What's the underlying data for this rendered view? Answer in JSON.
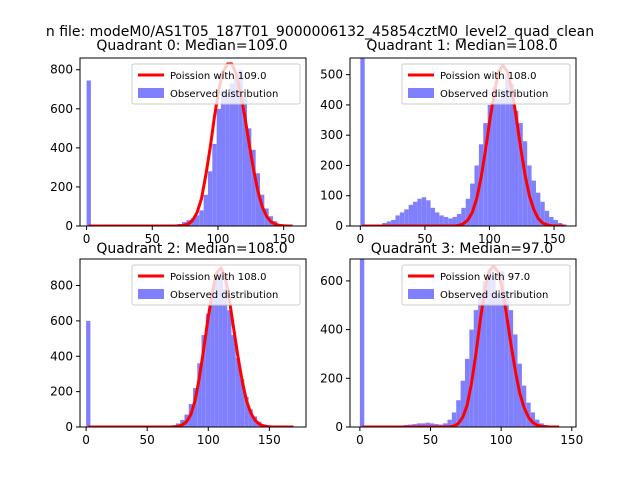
{
  "figure": {
    "suptitle": "n file: modeM0/AS1T05_187T01_9000006132_45854cztM0_level2_quad_clean"
  },
  "legend": {
    "observed_label": "Observed distribution"
  },
  "colors": {
    "histogram": "#8080ff",
    "poisson_line": "#ff0000",
    "axis": "#000000"
  },
  "chart_data": [
    {
      "type": "bar",
      "title": "Quadrant 0: Median=109.0",
      "poisson_label": "Poission with 109.0",
      "median": 109.0,
      "xlim": [
        -5,
        167
      ],
      "ylim": [
        0,
        860
      ],
      "xticks": [
        "0",
        "50",
        "100",
        "150"
      ],
      "yticks": [
        "0",
        "200",
        "400",
        "600",
        "800"
      ],
      "legend_position": "top-right",
      "bin_width": 3.3,
      "x": [
        0,
        3.3,
        6.6,
        9.9,
        13.2,
        16.5,
        19.8,
        23.1,
        26.4,
        29.7,
        33.0,
        36.3,
        39.6,
        42.9,
        46.2,
        49.5,
        52.8,
        56.1,
        59.4,
        62.7,
        66.0,
        69.3,
        72.6,
        75.9,
        79.2,
        82.5,
        85.8,
        89.1,
        92.4,
        95.7,
        99.0,
        102.3,
        105.6,
        108.9,
        112.2,
        115.5,
        118.8,
        122.1,
        125.4,
        128.7,
        132.0,
        135.3,
        138.6,
        141.9,
        145.2,
        148.5,
        151.8,
        155.1
      ],
      "values": [
        745,
        0,
        0,
        0,
        0,
        0,
        0,
        0,
        0,
        0,
        0,
        0,
        0,
        0,
        0,
        0,
        0,
        0,
        0,
        0,
        5,
        10,
        20,
        30,
        40,
        55,
        80,
        160,
        280,
        420,
        600,
        690,
        680,
        730,
        760,
        800,
        660,
        500,
        390,
        270,
        160,
        90,
        50,
        25,
        10,
        5,
        2,
        0
      ],
      "poisson_values": [
        0,
        0,
        0,
        0,
        0,
        0,
        0,
        0,
        0,
        0,
        0,
        0,
        0,
        0,
        0,
        0,
        0,
        0,
        0,
        0,
        0,
        1,
        4,
        10,
        30,
        70,
        140,
        260,
        400,
        560,
        700,
        790,
        830,
        830,
        780,
        680,
        560,
        420,
        290,
        180,
        100,
        50,
        22,
        9,
        3,
        1,
        0,
        0
      ]
    },
    {
      "type": "bar",
      "title": "Quadrant 1: Median=108.0",
      "poisson_label": "Poission with 108.0",
      "median": 108.0,
      "xlim": [
        -8,
        167
      ],
      "ylim": [
        0,
        555
      ],
      "xticks": [
        "0",
        "50",
        "100",
        "150"
      ],
      "yticks": [
        "0",
        "100",
        "200",
        "300",
        "400",
        "500"
      ],
      "legend_position": "top-right",
      "bin_width": 3.4,
      "x": [
        0,
        3.4,
        6.8,
        10.2,
        13.6,
        17.0,
        20.4,
        23.8,
        27.2,
        30.6,
        34.0,
        37.4,
        40.8,
        44.2,
        47.6,
        51.0,
        54.4,
        57.8,
        61.2,
        64.6,
        68.0,
        71.4,
        74.8,
        78.2,
        81.6,
        85.0,
        88.4,
        91.8,
        95.2,
        98.6,
        102.0,
        105.4,
        108.8,
        112.2,
        115.6,
        119.0,
        122.4,
        125.8,
        129.2,
        132.6,
        136.0,
        139.4,
        142.8,
        146.2,
        149.6,
        153.0,
        156.4
      ],
      "values": [
        555,
        0,
        0,
        0,
        0,
        10,
        15,
        20,
        35,
        45,
        55,
        70,
        80,
        90,
        95,
        85,
        60,
        45,
        35,
        30,
        25,
        30,
        40,
        60,
        90,
        140,
        200,
        270,
        340,
        400,
        460,
        420,
        450,
        500,
        470,
        380,
        340,
        280,
        200,
        150,
        110,
        80,
        50,
        30,
        20,
        10,
        5
      ],
      "poisson_values": [
        0,
        0,
        0,
        0,
        0,
        0,
        0,
        0,
        0,
        0,
        0,
        0,
        0,
        0,
        0,
        0,
        0,
        0,
        0,
        0,
        0,
        0,
        2,
        8,
        20,
        45,
        90,
        160,
        250,
        350,
        440,
        510,
        530,
        510,
        450,
        360,
        260,
        170,
        100,
        55,
        25,
        10,
        4,
        1,
        0,
        0,
        0
      ]
    },
    {
      "type": "bar",
      "title": "Quadrant 2: Median=108.0",
      "poisson_label": "Poission with 108.0",
      "median": 108.0,
      "xlim": [
        -5,
        180
      ],
      "ylim": [
        0,
        950
      ],
      "xticks": [
        "0",
        "50",
        "100",
        "150"
      ],
      "yticks": [
        "0",
        "200",
        "400",
        "600",
        "800"
      ],
      "legend_position": "top-right",
      "bin_width": 3.5,
      "x": [
        0,
        3.5,
        7.0,
        10.5,
        14.0,
        17.5,
        21.0,
        24.5,
        28.0,
        31.5,
        35.0,
        38.5,
        42.0,
        45.5,
        49.0,
        52.5,
        56.0,
        59.5,
        63.0,
        66.5,
        70.0,
        73.5,
        77.0,
        80.5,
        84.0,
        87.5,
        91.0,
        94.5,
        98.0,
        101.5,
        105.0,
        108.5,
        112.0,
        115.5,
        119.0,
        122.5,
        126.0,
        129.5,
        133.0,
        136.5,
        140.0,
        143.5,
        147.0,
        150.5,
        154.0,
        157.5,
        161.0,
        164.5,
        168.0
      ],
      "values": [
        600,
        0,
        0,
        0,
        0,
        0,
        0,
        0,
        0,
        0,
        0,
        0,
        0,
        0,
        0,
        0,
        0,
        0,
        2,
        5,
        10,
        20,
        40,
        70,
        130,
        220,
        360,
        520,
        640,
        740,
        840,
        870,
        780,
        660,
        520,
        390,
        270,
        170,
        100,
        60,
        30,
        15,
        8,
        4,
        2,
        1,
        0,
        0,
        0
      ],
      "poisson_values": [
        0,
        0,
        0,
        0,
        0,
        0,
        0,
        0,
        0,
        0,
        0,
        0,
        0,
        0,
        0,
        0,
        0,
        0,
        0,
        0,
        1,
        4,
        12,
        30,
        70,
        150,
        280,
        440,
        610,
        760,
        870,
        900,
        850,
        720,
        560,
        400,
        260,
        150,
        80,
        38,
        16,
        6,
        2,
        0,
        0,
        0,
        0,
        0,
        0
      ]
    },
    {
      "type": "bar",
      "title": "Quadrant 3: Median=97.0",
      "poisson_label": "Poission with 97.0",
      "median": 97.0,
      "xlim": [
        -7,
        153
      ],
      "ylim": [
        0,
        690
      ],
      "xticks": [
        "0",
        "50",
        "100",
        "150"
      ],
      "yticks": [
        "0",
        "200",
        "400",
        "600"
      ],
      "legend_position": "top-right",
      "bin_width": 3.1,
      "x": [
        0,
        3.1,
        6.2,
        9.3,
        12.4,
        15.5,
        18.6,
        21.7,
        24.8,
        27.9,
        31.0,
        34.1,
        37.2,
        40.3,
        43.4,
        46.5,
        49.6,
        52.7,
        55.8,
        58.9,
        62.0,
        65.1,
        68.2,
        71.3,
        74.4,
        77.5,
        80.6,
        83.7,
        86.8,
        89.9,
        93.0,
        96.1,
        99.2,
        102.3,
        105.4,
        108.5,
        111.6,
        114.7,
        117.8,
        120.9,
        124.0,
        127.1,
        130.2,
        133.3,
        136.4,
        139.5
      ],
      "values": [
        690,
        0,
        0,
        0,
        0,
        0,
        0,
        2,
        3,
        5,
        8,
        10,
        12,
        15,
        15,
        18,
        15,
        12,
        10,
        15,
        30,
        60,
        110,
        190,
        280,
        400,
        480,
        550,
        600,
        640,
        620,
        550,
        640,
        560,
        480,
        380,
        260,
        170,
        100,
        60,
        30,
        15,
        8,
        4,
        2,
        1
      ],
      "poisson_values": [
        0,
        0,
        0,
        0,
        0,
        0,
        0,
        0,
        0,
        0,
        0,
        0,
        0,
        0,
        0,
        0,
        0,
        0,
        0,
        0,
        1,
        4,
        15,
        40,
        90,
        180,
        300,
        440,
        560,
        640,
        660,
        640,
        570,
        460,
        340,
        230,
        140,
        80,
        40,
        18,
        7,
        3,
        1,
        0,
        0,
        0
      ]
    }
  ]
}
